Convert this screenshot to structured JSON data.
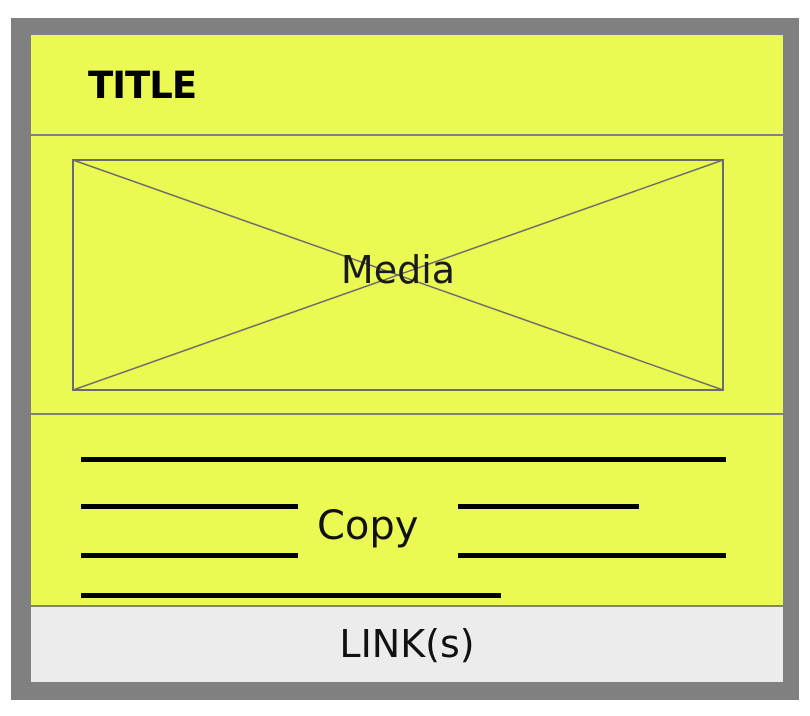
{
  "card": {
    "title": "TITLE",
    "media_label": "Media",
    "copy_label": "Copy",
    "links_label": "LINK(s)"
  },
  "colors": {
    "frame": "#808080",
    "card_background": "#ebfa52",
    "links_background": "#ececec",
    "text": "#000000"
  },
  "icons": {
    "media_placeholder": "crossed-box-placeholder"
  }
}
